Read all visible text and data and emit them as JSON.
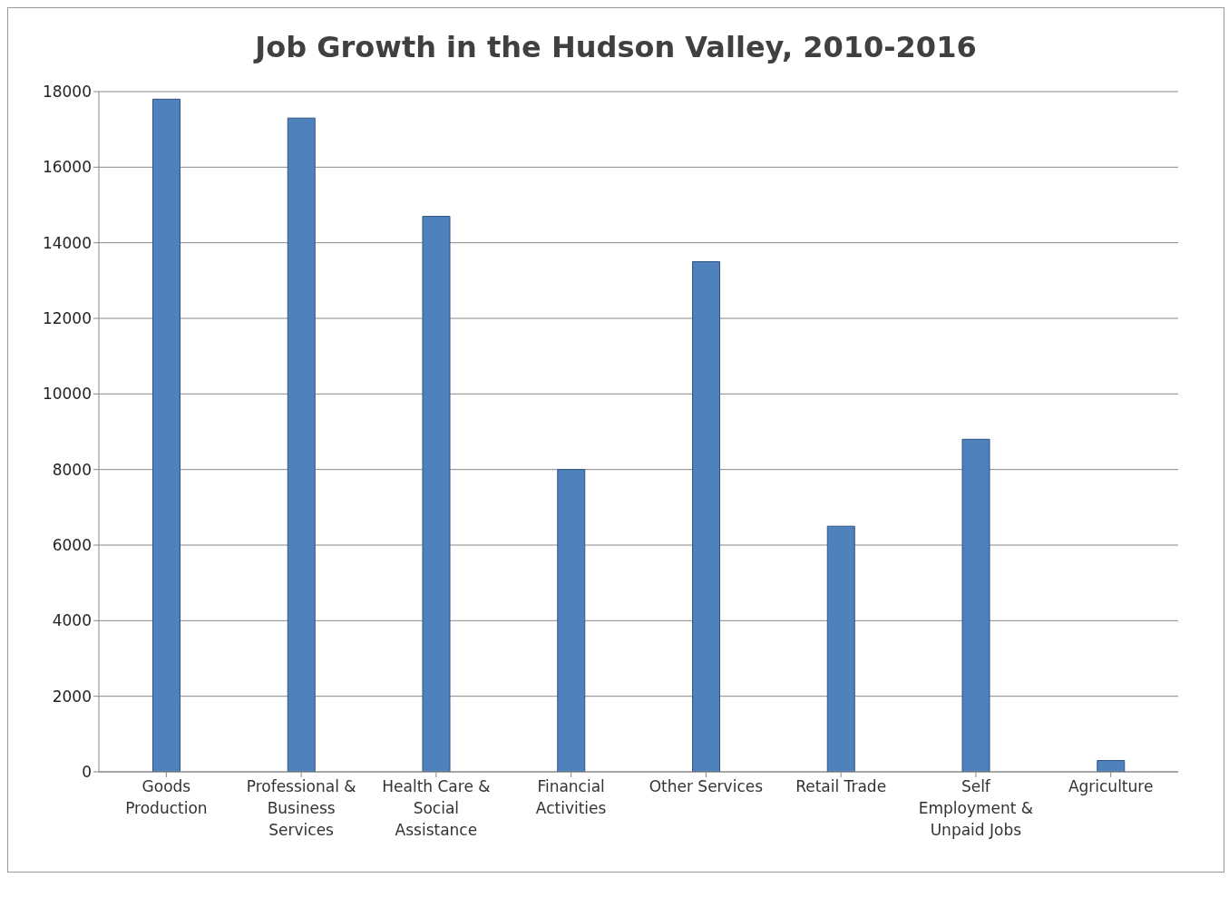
{
  "chart_data": {
    "type": "bar",
    "title": "Job Growth in the Hudson Valley, 2010-2016",
    "categories": [
      "Goods Production",
      "Professional & Business Services",
      "Health Care & Social Assistance",
      "Financial Activities",
      "Other Services",
      "Retail Trade",
      "Self Employment & Unpaid Jobs",
      "Agriculture"
    ],
    "values": [
      17800,
      17300,
      14700,
      8000,
      13500,
      6500,
      8800,
      300
    ],
    "color": "#4f81bd",
    "ylim": [
      0,
      18000
    ],
    "yticks": [
      0,
      2000,
      4000,
      6000,
      8000,
      10000,
      12000,
      14000,
      16000,
      18000
    ],
    "grid": "y"
  }
}
